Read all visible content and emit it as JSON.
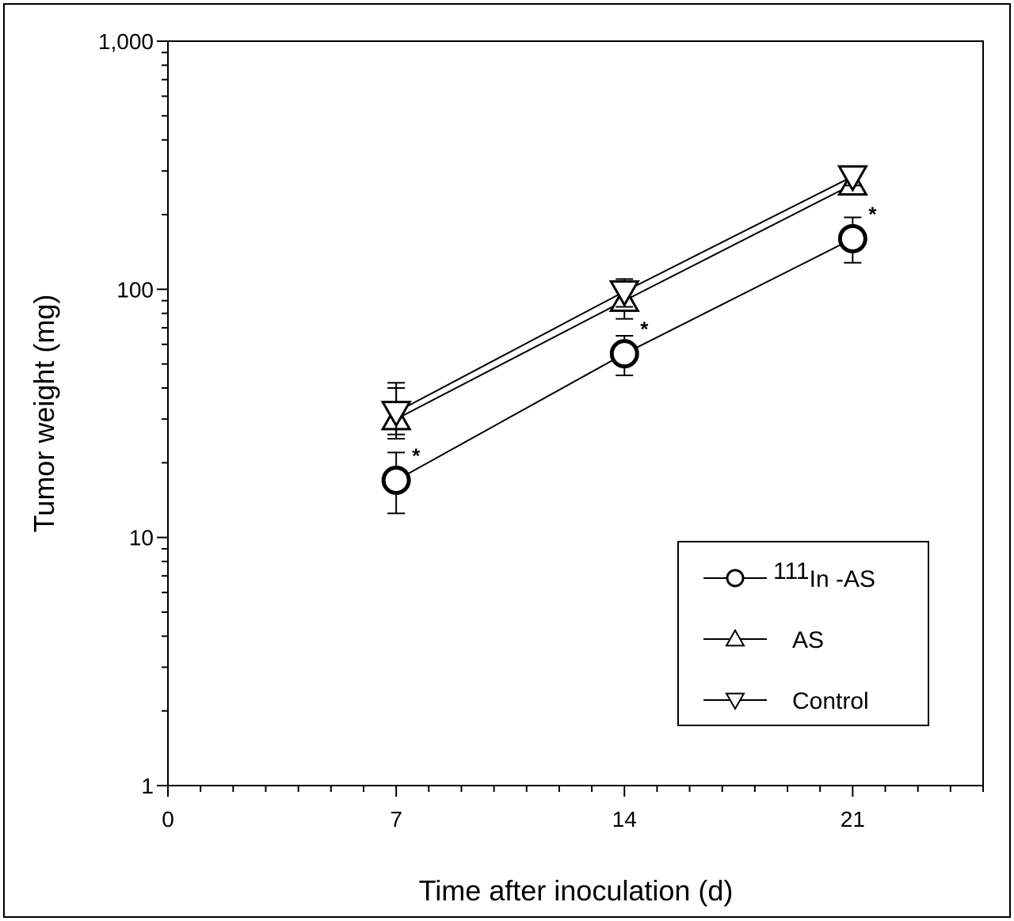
{
  "chart_data": {
    "type": "line",
    "xlabel": "Time after inoculation (d)",
    "ylabel": "Tumor weight (mg)",
    "x_scale": "linear",
    "y_scale": "log",
    "xlim": [
      0,
      25
    ],
    "ylim": [
      1,
      1000
    ],
    "x_ticks": [
      0,
      7,
      14,
      21
    ],
    "y_ticks": [
      1,
      10,
      100,
      1000
    ],
    "y_tick_labels": [
      "1",
      "10",
      "100",
      "1,000"
    ],
    "grid": false,
    "legend_position": "bottom-right",
    "significance_marker": "*",
    "series": [
      {
        "name": "111In-AS",
        "legend_sup": "111",
        "legend_main": "In",
        "legend_suffix": " -AS",
        "marker": "circle",
        "x": [
          7,
          14,
          21
        ],
        "y": [
          17,
          55,
          160
        ],
        "error": [
          [
            12.5,
            22
          ],
          [
            45,
            65
          ],
          [
            128,
            195
          ]
        ],
        "significant": [
          true,
          true,
          true
        ]
      },
      {
        "name": "AS",
        "marker": "triangle-up",
        "x": [
          7,
          14,
          21
        ],
        "y": [
          30,
          90,
          265
        ],
        "error": [
          [
            25,
            40
          ],
          [
            76,
            98
          ],
          [
            245,
            285
          ]
        ],
        "significant": [
          false,
          false,
          false
        ]
      },
      {
        "name": "Control",
        "marker": "triangle-down",
        "x": [
          7,
          14,
          21
        ],
        "y": [
          32,
          98,
          285
        ],
        "error": [
          [
            26,
            42
          ],
          [
            85,
            110
          ],
          [
            262,
            305
          ]
        ],
        "significant": [
          false,
          false,
          false
        ]
      }
    ]
  }
}
